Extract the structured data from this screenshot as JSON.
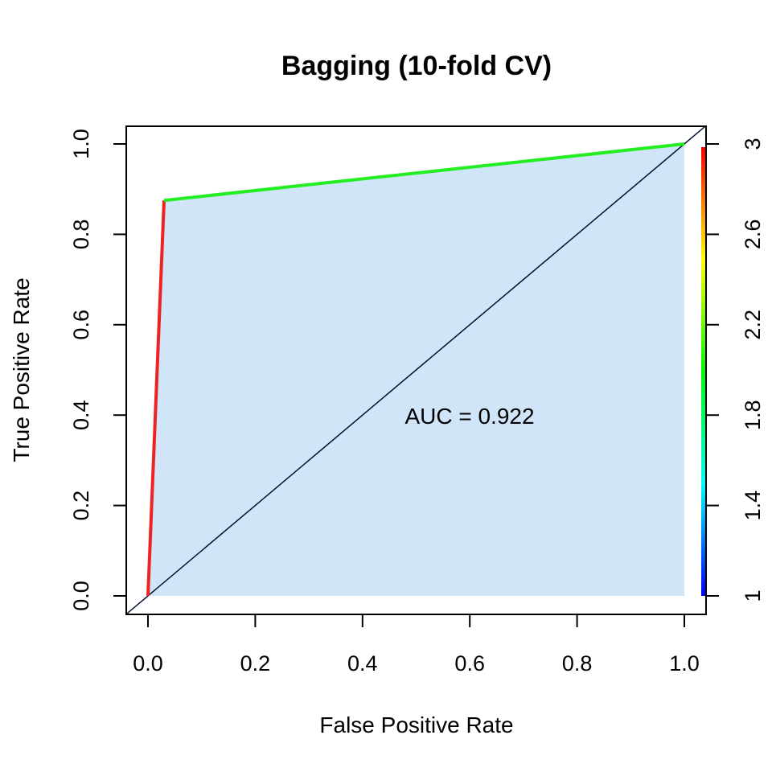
{
  "colors": {
    "auc_fill": "#d0e5f8",
    "diagonal": "#001030",
    "frame": "#000000"
  },
  "chart_data": {
    "type": "line",
    "title": "Bagging (10-fold CV)",
    "xlabel": "False Positive Rate",
    "ylabel": "True Positive Rate",
    "xlim": [
      0.0,
      1.0
    ],
    "ylim": [
      0.0,
      1.0
    ],
    "x_ticks": [
      "0.0",
      "0.2",
      "0.4",
      "0.6",
      "0.8",
      "1.0"
    ],
    "y_ticks": [
      "0.0",
      "0.2",
      "0.4",
      "0.6",
      "0.8",
      "1.0"
    ],
    "roc_curve": {
      "fpr": [
        0.0,
        0.03,
        1.0
      ],
      "tpr": [
        0.0,
        0.875,
        1.0
      ],
      "cutoffs": [
        3.0,
        2.0,
        1.0
      ],
      "segment_colors": [
        "#ee2222",
        "#22ee22"
      ]
    },
    "diagonal": {
      "x": [
        0.0,
        1.0
      ],
      "y": [
        0.0,
        1.0
      ]
    },
    "auc": 0.922,
    "annotation": "AUC = 0.922",
    "colorbar": {
      "min": 1.0,
      "max": 3.0,
      "tick_labels": [
        "1",
        "1.4",
        "1.8",
        "2.2",
        "2.6",
        "3"
      ],
      "tick_values": [
        1.0,
        1.4,
        1.8,
        2.2,
        2.6,
        3.0
      ],
      "colormap": [
        "#0000ff",
        "#00ffff",
        "#00ff00",
        "#ffff00",
        "#ff0000"
      ]
    }
  }
}
